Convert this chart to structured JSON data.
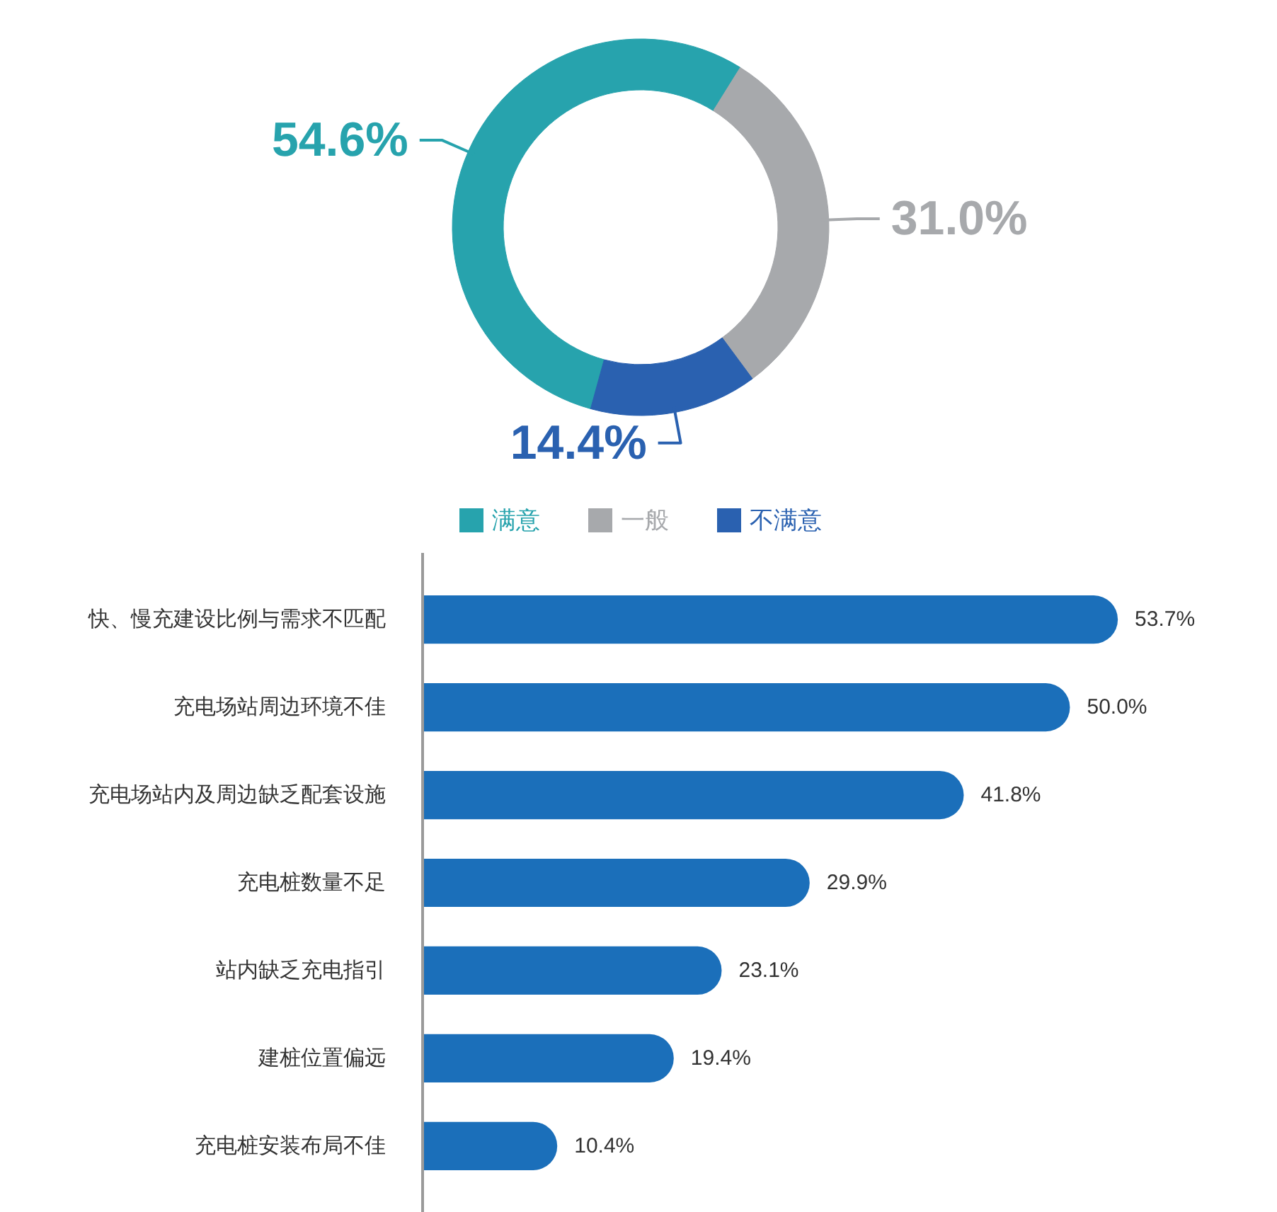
{
  "chart_data": [
    {
      "type": "donut",
      "categories": [
        "满意",
        "一般",
        "不满意"
      ],
      "values": [
        54.6,
        31.0,
        14.4
      ],
      "colors": [
        "#27a3ad",
        "#a7a9ac",
        "#2a61b0"
      ],
      "value_labels": [
        "54.6%",
        "31.0%",
        "14.4%"
      ],
      "legend": "bottom"
    },
    {
      "type": "bar",
      "orientation": "horizontal",
      "categories": [
        "快、慢充建设比例与需求不匹配",
        "充电场站周边环境不佳",
        "充电场站内及周边缺乏配套设施",
        "充电桩数量不足",
        "站内缺乏充电指引",
        "建桩位置偏远",
        "充电桩安装布局不佳"
      ],
      "values": [
        53.7,
        50.0,
        41.8,
        29.9,
        23.1,
        19.4,
        10.4
      ],
      "color": "#1b6fba",
      "value_labels": [
        "53.7%",
        "50.0%",
        "41.8%",
        "29.9%",
        "23.1%",
        "19.4%",
        "10.4%"
      ],
      "tick_labels": "y"
    }
  ]
}
